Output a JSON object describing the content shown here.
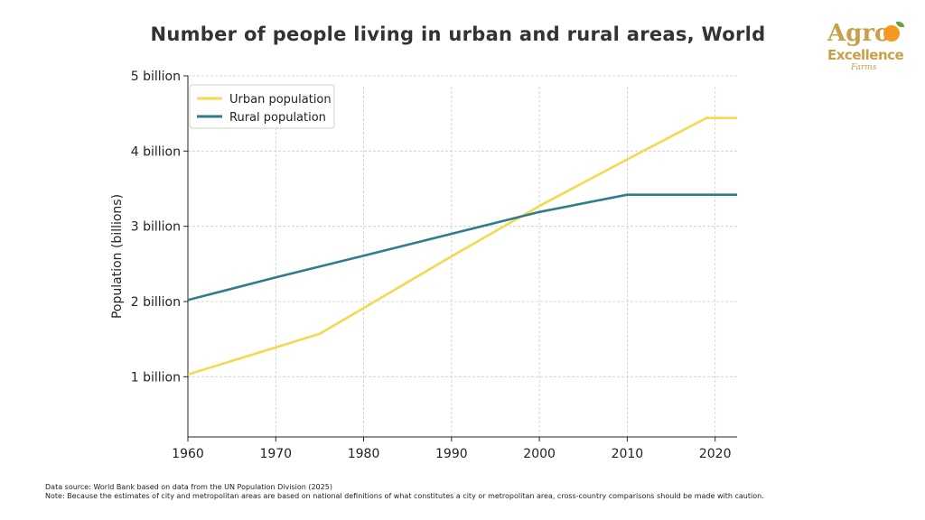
{
  "title": "Number of people living in urban and rural areas, World",
  "logo": {
    "line1": "Agro",
    "line2": "Excellence",
    "line3": "Farms"
  },
  "footnotes": {
    "source": "Data source: World Bank based on data from the UN Population Division (2025)",
    "note": "Note: Because the estimates of city and metropolitan areas are based on national definitions of what constitutes a city or metropolitan area, cross-country comparisons should be made with caution."
  },
  "colors": {
    "urban": "#f3d94e",
    "rural": "#2e7c8c",
    "grid": "#cccccc",
    "axis": "#222222"
  },
  "chart_data": {
    "type": "line",
    "title": "Number of people living in urban and rural areas, World",
    "xlabel": "",
    "ylabel": "Population (billions)",
    "xlim": [
      1960,
      2022.5
    ],
    "ylim": [
      0.2,
      5.0
    ],
    "xticks": [
      1960,
      1970,
      1980,
      1990,
      2000,
      2010,
      2020
    ],
    "yticks": [
      {
        "value": 1,
        "label": "1 billion"
      },
      {
        "value": 2,
        "label": "2 billion"
      },
      {
        "value": 3,
        "label": "3 billion"
      },
      {
        "value": 4,
        "label": "4 billion"
      },
      {
        "value": 5,
        "label": "5 billion"
      }
    ],
    "grid": true,
    "legend_position": "top-left",
    "series": [
      {
        "name": "Urban population",
        "color": "#f3d94e",
        "x": [
          1960,
          1975,
          1990,
          2000,
          2010,
          2019,
          2023
        ],
        "y": [
          1.03,
          1.57,
          2.6,
          3.27,
          3.89,
          4.44,
          4.44
        ]
      },
      {
        "name": "Rural population",
        "color": "#2e7c8c",
        "x": [
          1960,
          1970,
          1980,
          1990,
          2000,
          2010,
          2023
        ],
        "y": [
          2.02,
          2.32,
          2.61,
          2.9,
          3.19,
          3.42,
          3.42
        ]
      }
    ]
  }
}
